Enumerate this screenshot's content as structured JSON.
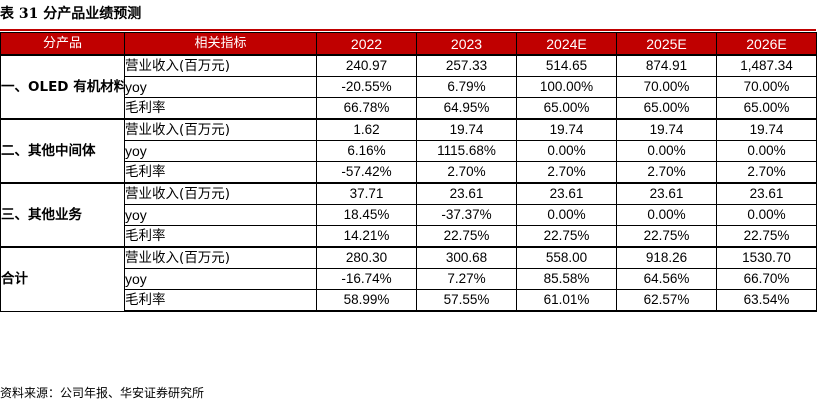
{
  "title": "表 31 分产品业绩预测",
  "source": "资料来源：公司年报、华安证券研究所",
  "header": {
    "segment": "分产品",
    "metric": "相关指标",
    "years": [
      "2022",
      "2023",
      "2024E",
      "2025E",
      "2026E"
    ]
  },
  "segments": [
    {
      "name": "一、OLED 有机材料",
      "rows": [
        {
          "metric": "营业收入(百万元)",
          "values": [
            "240.97",
            "257.33",
            "514.65",
            "874.91",
            "1,487.34"
          ]
        },
        {
          "metric": "yoy",
          "values": [
            "-20.55%",
            "6.79%",
            "100.00%",
            "70.00%",
            "70.00%"
          ]
        },
        {
          "metric": "毛利率",
          "values": [
            "66.78%",
            "64.95%",
            "65.00%",
            "65.00%",
            "65.00%"
          ]
        }
      ]
    },
    {
      "name": "二、其他中间体",
      "rows": [
        {
          "metric": "营业收入(百万元)",
          "values": [
            "1.62",
            "19.74",
            "19.74",
            "19.74",
            "19.74"
          ]
        },
        {
          "metric": "yoy",
          "values": [
            "6.16%",
            "1115.68%",
            "0.00%",
            "0.00%",
            "0.00%"
          ]
        },
        {
          "metric": "毛利率",
          "values": [
            "-57.42%",
            "2.70%",
            "2.70%",
            "2.70%",
            "2.70%"
          ]
        }
      ]
    },
    {
      "name": "三、其他业务",
      "rows": [
        {
          "metric": "营业收入(百万元)",
          "values": [
            "37.71",
            "23.61",
            "23.61",
            "23.61",
            "23.61"
          ]
        },
        {
          "metric": "yoy",
          "values": [
            "18.45%",
            "-37.37%",
            "0.00%",
            "0.00%",
            "0.00%"
          ]
        },
        {
          "metric": "毛利率",
          "values": [
            "14.21%",
            "22.75%",
            "22.75%",
            "22.75%",
            "22.75%"
          ]
        }
      ]
    },
    {
      "name": "合计",
      "rows": [
        {
          "metric": "营业收入(百万元)",
          "values": [
            "280.30",
            "300.68",
            "558.00",
            "918.26",
            "1530.70"
          ]
        },
        {
          "metric": "yoy",
          "values": [
            "-16.74%",
            "7.27%",
            "85.58%",
            "64.56%",
            "66.70%"
          ]
        },
        {
          "metric": "毛利率",
          "values": [
            "58.99%",
            "57.55%",
            "61.01%",
            "62.57%",
            "63.54%"
          ]
        }
      ]
    }
  ]
}
